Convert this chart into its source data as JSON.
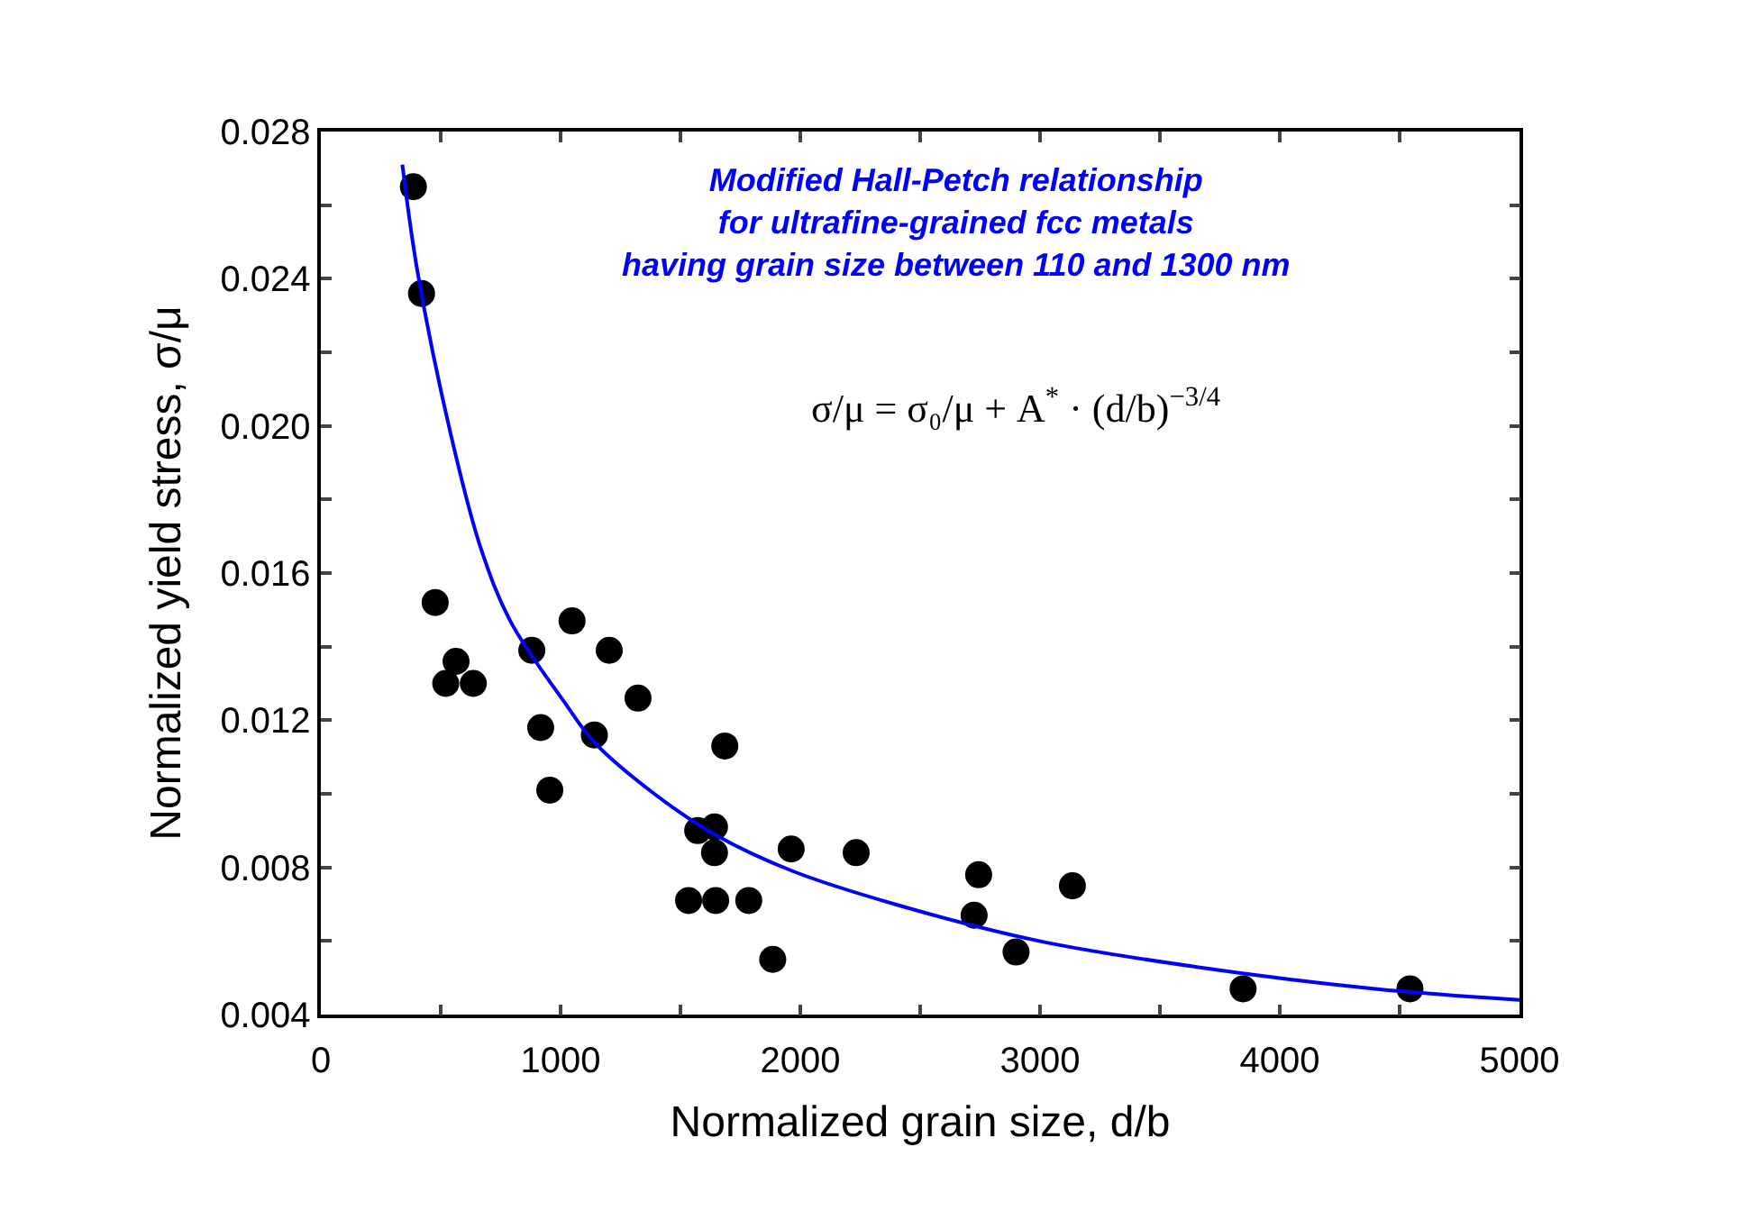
{
  "chart_data": {
    "type": "scatter",
    "xlabel": "Normalized grain size, d/b",
    "ylabel": "Normalized yield stress, σ/μ",
    "series": [
      {
        "color": "#000000",
        "marker": "circle",
        "x": [
          386,
          420,
          477,
          564,
          521,
          636,
          880,
          1048,
          1203,
          1323,
          917,
          955,
          1141,
          1685,
          1572,
          1642,
          1642,
          1962,
          2233,
          1534,
          1647,
          1785,
          1885,
          2744,
          2725,
          2900,
          3135,
          3847,
          4543
        ],
        "values": [
          0.0265,
          0.0236,
          0.0152,
          0.0136,
          0.013,
          0.013,
          0.0139,
          0.0147,
          0.0139,
          0.0126,
          0.0118,
          0.0101,
          0.0116,
          0.0113,
          0.009,
          0.0091,
          0.0084,
          0.0085,
          0.0084,
          0.0071,
          0.0071,
          0.0071,
          0.0055,
          0.0078,
          0.0067,
          0.0057,
          0.0075,
          0.0047,
          0.0047
        ]
      },
      {
        "type": "line",
        "color": "#0000ff",
        "line_style": "solid",
        "marker": "none",
        "x": [
          340,
          403,
          541,
          666,
          790,
          1015,
          1141,
          1391,
          1642,
          1968,
          2394,
          2996,
          3647,
          4398,
          5000
        ],
        "values": [
          0.0271,
          0.0242,
          0.0198,
          0.0167,
          0.0147,
          0.0125,
          0.0114,
          0.01,
          0.0089,
          0.0079,
          0.007,
          0.006,
          0.0053,
          0.0047,
          0.0044
        ]
      }
    ],
    "xlim": [
      0,
      5000
    ],
    "xticks": [
      0,
      {
        "value": 500,
        "label": null
      },
      1000,
      {
        "value": 1500,
        "label": null
      },
      2000,
      {
        "value": 2500,
        "label": null
      },
      3000,
      {
        "value": 3500,
        "label": null
      },
      4000,
      {
        "value": 4500,
        "label": null
      },
      5000
    ],
    "ylim": [
      0.004,
      0.028
    ],
    "yticks": [
      0.004,
      {
        "value": 0.006,
        "label": null
      },
      0.008,
      {
        "value": 0.01,
        "label": null
      },
      0.012,
      {
        "value": 0.014,
        "label": null
      },
      0.016,
      {
        "value": 0.018,
        "label": null
      },
      {
        "value": 0.02,
        "label": "0.020"
      },
      {
        "value": 0.022,
        "label": null
      },
      0.024,
      {
        "value": 0.026,
        "label": null
      },
      0.028
    ],
    "annotations": [
      "Modified Hall-Petch relationship\nfor ultrafine-grained fcc metals\nhaving grain size between 110 and 1300 nm",
      "σ/μ = σ₀/μ + A$^{*}$ · (d/b)$^{−3/4}$"
    ]
  }
}
